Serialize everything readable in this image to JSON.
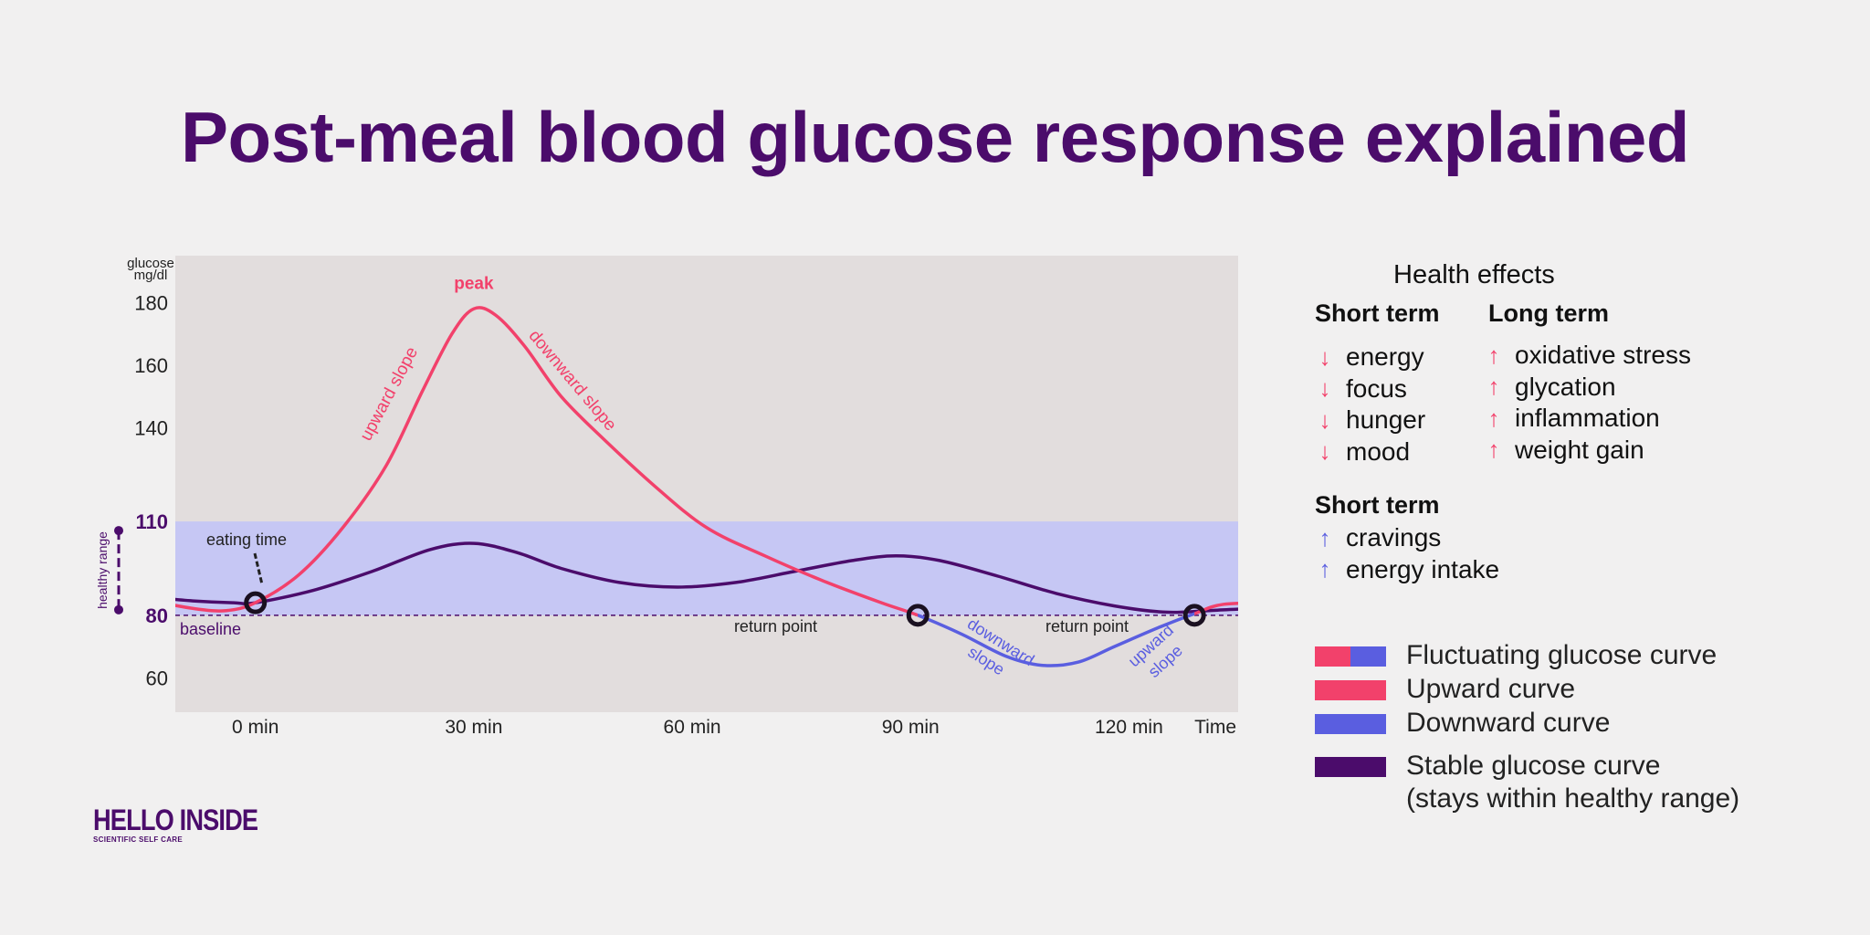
{
  "title": "Post-meal blood glucose response explained",
  "colors": {
    "upward": "#f2416b",
    "downward": "#5a5ee0",
    "stable": "#4b0c6b",
    "healthy_band": "#c6c7f4",
    "plot_bg": "#e2dddd",
    "page_bg": "#f1f0f0"
  },
  "chart_data": {
    "type": "line",
    "title": "",
    "ylabel": "glucose mg/dl",
    "xlabel": "Time",
    "x_unit": "min",
    "xlim": [
      -11,
      135
    ],
    "ylim": [
      49,
      195
    ],
    "x_ticks": [
      0,
      30,
      60,
      90,
      120
    ],
    "x_tick_labels": [
      "0 min",
      "30 min",
      "60 min",
      "90 min",
      "120 min"
    ],
    "x_end_label": "Time",
    "y_ticks": [
      60,
      80,
      110,
      140,
      160,
      180
    ],
    "y_highlight_ticks": [
      80,
      110
    ],
    "healthy_range": [
      80,
      110
    ],
    "healthy_range_label": "healthy range",
    "baseline": 80,
    "baseline_label": "baseline",
    "series": [
      {
        "name": "Fluctuating glucose curve",
        "points": [
          [
            -13,
            84
          ],
          [
            -8,
            82
          ],
          [
            -4,
            81.5
          ],
          [
            0,
            84
          ],
          [
            6,
            93
          ],
          [
            12,
            108
          ],
          [
            18,
            128
          ],
          [
            23,
            152
          ],
          [
            27,
            170
          ],
          [
            30,
            178
          ],
          [
            33,
            176
          ],
          [
            37,
            166
          ],
          [
            42,
            150
          ],
          [
            48,
            136
          ],
          [
            55,
            121
          ],
          [
            62,
            108
          ],
          [
            70,
            99
          ],
          [
            78,
            91
          ],
          [
            86,
            84
          ],
          [
            91,
            80
          ],
          [
            97,
            74
          ],
          [
            103,
            67
          ],
          [
            108,
            64
          ],
          [
            113,
            65
          ],
          [
            118,
            70
          ],
          [
            124,
            76
          ],
          [
            129,
            80.5
          ],
          [
            133,
            83.5
          ],
          [
            140,
            84
          ],
          [
            150,
            84.5
          ],
          [
            160,
            86
          ]
        ],
        "segments": [
          {
            "from": -13,
            "to": 91,
            "color": "upward"
          },
          {
            "from": 91,
            "to": 129,
            "color": "downward"
          },
          {
            "from": 129,
            "to": 160,
            "color": "upward"
          }
        ]
      },
      {
        "name": "Stable glucose curve (stays within healthy range)",
        "color": "stable",
        "points": [
          [
            -13,
            85.5
          ],
          [
            -8,
            84.5
          ],
          [
            -3,
            84
          ],
          [
            0,
            84
          ],
          [
            8,
            88
          ],
          [
            16,
            94
          ],
          [
            24,
            101
          ],
          [
            30,
            103
          ],
          [
            36,
            100
          ],
          [
            42,
            95
          ],
          [
            50,
            90.5
          ],
          [
            58,
            89
          ],
          [
            66,
            90.5
          ],
          [
            74,
            94
          ],
          [
            82,
            97.5
          ],
          [
            88,
            99
          ],
          [
            94,
            97.5
          ],
          [
            102,
            92.5
          ],
          [
            110,
            87
          ],
          [
            118,
            83
          ],
          [
            125,
            81
          ],
          [
            131,
            81.5
          ],
          [
            140,
            82.5
          ],
          [
            150,
            83
          ],
          [
            160,
            83.5
          ]
        ]
      }
    ],
    "annotations": {
      "peak": "peak",
      "upward_slope": "upward slope",
      "downward_slope": "downward slope",
      "eating_time": "eating time",
      "return_point_1": "return point",
      "return_point_2": "return point",
      "downward_slope_2": [
        "downward",
        "slope"
      ],
      "upward_slope_2": [
        "upward",
        "slope"
      ]
    },
    "markers": [
      {
        "name": "eating-time-marker",
        "x": 0,
        "y": 84
      },
      {
        "name": "return-point-1-marker",
        "x": 91,
        "y": 80
      },
      {
        "name": "return-point-2-marker",
        "x": 129,
        "y": 80
      }
    ]
  },
  "effects": {
    "title": "Health effects",
    "spike_short_term": {
      "heading": "Short term",
      "items": [
        "energy",
        "focus",
        "hunger",
        "mood"
      ],
      "direction": "down"
    },
    "spike_long_term": {
      "heading": "Long term",
      "items": [
        "oxidative stress",
        "glycation",
        "inflammation",
        "weight gain"
      ],
      "direction": "up"
    },
    "dip_short_term": {
      "heading": "Short term",
      "items": [
        "cravings",
        "energy intake"
      ],
      "direction": "up"
    }
  },
  "legend": [
    {
      "label": "Fluctuating glucose curve",
      "colors": [
        "upward",
        "downward"
      ]
    },
    {
      "label": "Upward curve",
      "colors": [
        "upward"
      ]
    },
    {
      "label": "Downward curve",
      "colors": [
        "downward"
      ]
    },
    {
      "label": "Stable glucose curve",
      "sublabel": "(stays within healthy range)",
      "colors": [
        "stable"
      ]
    }
  ],
  "brand": {
    "name": "HELLO INSIDE",
    "tagline": "SCIENTIFIC SELF CARE"
  }
}
